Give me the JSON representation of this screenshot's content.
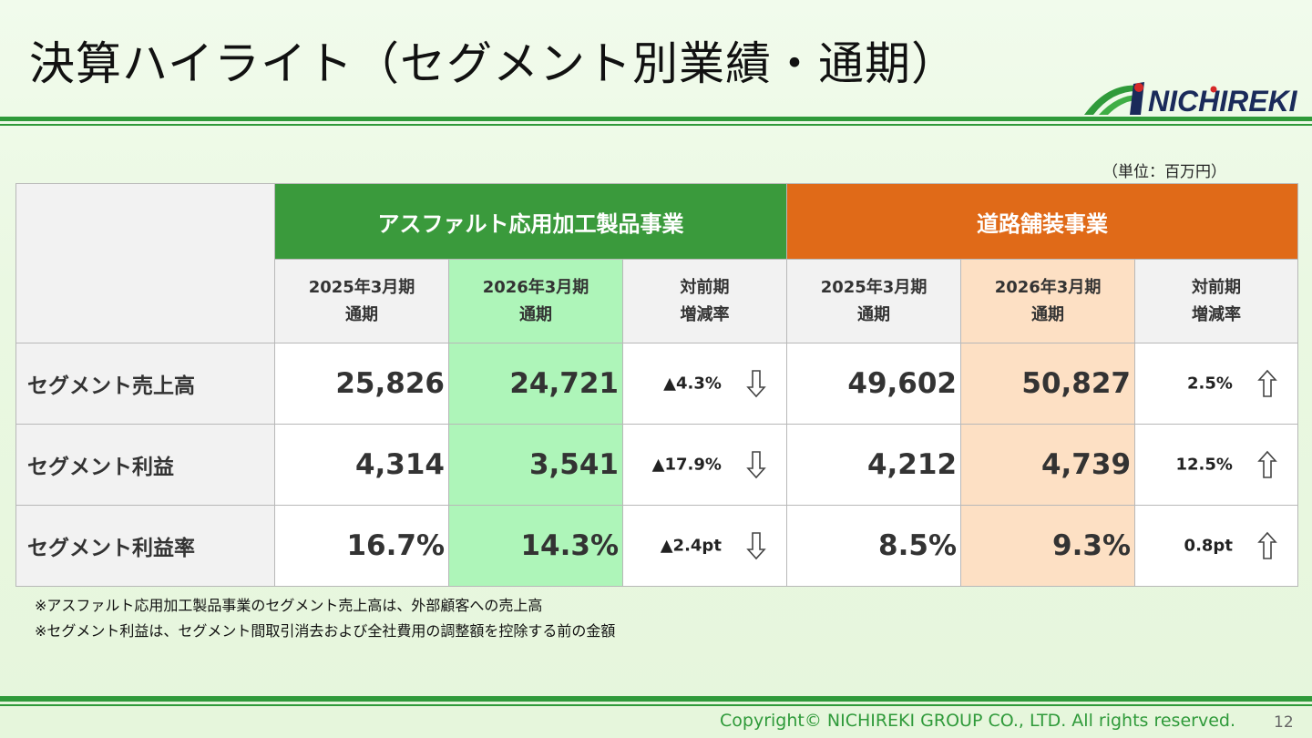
{
  "title": "決算ハイライト（セグメント別業績・通期）",
  "logo": {
    "text": "NICHIREKI",
    "colors": {
      "green": "#2f9a3a",
      "red": "#d62828",
      "navy": "#1a2a5a"
    }
  },
  "unit": "（単位：百万円）",
  "colors": {
    "green": "#3a9a3c",
    "orange": "#e06a18",
    "green_highlight": "#aef5b9",
    "orange_highlight": "#fde0c4"
  },
  "segments": [
    {
      "name": "アスファルト応用加工製品事業"
    },
    {
      "name": "道路舗装事業"
    }
  ],
  "columns": {
    "prev": [
      "2025年3月期",
      "通期"
    ],
    "curr": [
      "2026年3月期",
      "通期"
    ],
    "change": [
      "対前期",
      "増減率"
    ]
  },
  "rows": [
    {
      "label": "セグメント売上高",
      "a": {
        "prev": "25,826",
        "curr": "24,721",
        "change": "▲4.3%",
        "arrow": "down-arrow-icon"
      },
      "b": {
        "prev": "49,602",
        "curr": "50,827",
        "change": "2.5%",
        "arrow": "up-arrow-icon"
      }
    },
    {
      "label": "セグメント利益",
      "a": {
        "prev": "4,314",
        "curr": "3,541",
        "change": "▲17.9%",
        "arrow": "down-arrow-icon"
      },
      "b": {
        "prev": "4,212",
        "curr": "4,739",
        "change": "12.5%",
        "arrow": "up-arrow-icon"
      }
    },
    {
      "label": "セグメント利益率",
      "a": {
        "prev": "16.7%",
        "curr": "14.3%",
        "change": "▲2.4pt",
        "arrow": "down-arrow-icon"
      },
      "b": {
        "prev": "8.5%",
        "curr": "9.3%",
        "change": "0.8pt",
        "arrow": "up-arrow-icon"
      }
    }
  ],
  "notes": [
    "※アスファルト応用加工製品事業のセグメント売上高は、外部顧客への売上高",
    "※セグメント利益は、セグメント間取引消去および全社費用の調整額を控除する前の金額"
  ],
  "footer": {
    "copyright": "Copyright© NICHIREKI GROUP CO., LTD. All rights reserved.",
    "page": "12"
  }
}
